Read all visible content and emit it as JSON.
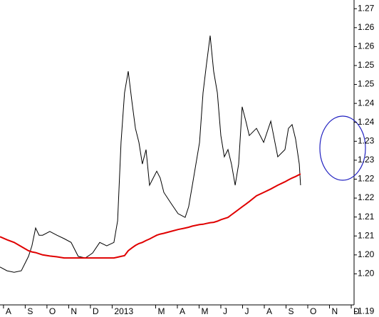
{
  "chart_data": {
    "type": "line",
    "x": [
      -0.16,
      0.16,
      0.49,
      0.82,
      1.15,
      1.31,
      1.48,
      1.64,
      1.8,
      2.13,
      2.46,
      2.79,
      3.11,
      3.44,
      3.77,
      4.1,
      4.43,
      4.75,
      5.08,
      5.25,
      5.41,
      5.57,
      5.74,
      5.9,
      6.07,
      6.23,
      6.39,
      6.56,
      6.72,
      6.89,
      7.05,
      7.21,
      7.38,
      7.7,
      8.03,
      8.36,
      8.52,
      8.69,
      9.02,
      9.18,
      9.34,
      9.51,
      9.67,
      9.84,
      10.0,
      10.16,
      10.33,
      10.49,
      10.66,
      10.82,
      10.98,
      11.15,
      11.31,
      11.64,
      11.97,
      12.3,
      12.62,
      12.95,
      13.11,
      13.28,
      13.44,
      13.61,
      13.67
    ],
    "series": [
      {
        "color": "#000000",
        "values": [
          1.2018,
          1.2008,
          1.2004,
          1.2008,
          1.2046,
          1.2074,
          1.2121,
          1.2102,
          1.2102,
          1.2112,
          1.2102,
          1.2093,
          1.2083,
          1.2046,
          1.2042,
          1.2055,
          1.2083,
          1.2074,
          1.2083,
          1.214,
          1.2347,
          1.2478,
          1.2535,
          1.2459,
          1.2384,
          1.2347,
          1.229,
          1.2328,
          1.2234,
          1.2253,
          1.2271,
          1.2253,
          1.2215,
          1.2187,
          1.2159,
          1.2149,
          1.2177,
          1.2234,
          1.2347,
          1.2478,
          1.2553,
          1.2629,
          1.2535,
          1.2478,
          1.2365,
          1.2309,
          1.2328,
          1.229,
          1.2234,
          1.229,
          1.2441,
          1.2403,
          1.2365,
          1.2384,
          1.2347,
          1.2403,
          1.2309,
          1.2328,
          1.2384,
          1.2394,
          1.2356,
          1.229,
          1.2234
        ]
      },
      {
        "color": "#e00000",
        "values": [
          1.2098,
          1.209,
          1.2083,
          1.2072,
          1.2061,
          1.2058,
          1.2056,
          1.2053,
          1.205,
          1.2047,
          1.2045,
          1.2042,
          1.2042,
          1.2042,
          1.2042,
          1.2042,
          1.2042,
          1.2042,
          1.2042,
          1.2044,
          1.2046,
          1.2048,
          1.2061,
          1.2068,
          1.2075,
          1.208,
          1.2083,
          1.2088,
          1.2092,
          1.2097,
          1.2102,
          1.2105,
          1.2107,
          1.2112,
          1.2117,
          1.2121,
          1.2123,
          1.2126,
          1.213,
          1.2131,
          1.2133,
          1.2135,
          1.2136,
          1.2139,
          1.2143,
          1.2146,
          1.2149,
          1.2156,
          1.2163,
          1.217,
          1.2177,
          1.2184,
          1.2191,
          1.2206,
          1.2215,
          1.2224,
          1.2234,
          1.2243,
          1.2248,
          1.2253,
          1.2257,
          1.2262,
          1.2264
        ]
      }
    ],
    "xlim": [
      -0.16,
      16.13
    ],
    "xticks": [
      {
        "value": 0,
        "label": "A"
      },
      {
        "value": 1,
        "label": "S"
      },
      {
        "value": 2,
        "label": "O"
      },
      {
        "value": 3,
        "label": "N"
      },
      {
        "value": 4,
        "label": "D"
      },
      {
        "value": 5,
        "label": "2013"
      },
      {
        "value": 7,
        "label": "M"
      },
      {
        "value": 8,
        "label": "A"
      },
      {
        "value": 9,
        "label": "M"
      },
      {
        "value": 10,
        "label": "J"
      },
      {
        "value": 11,
        "label": "J"
      },
      {
        "value": 12,
        "label": "A"
      },
      {
        "value": 13,
        "label": "S"
      },
      {
        "value": 14,
        "label": "O"
      },
      {
        "value": 15,
        "label": "N"
      },
      {
        "value": 16,
        "label": "D"
      }
    ],
    "ylim": [
      1.1918,
      1.2723
    ],
    "yticks": [
      1.27,
      {
        "value": 1.265,
        "label": "1.26"
      },
      1.26,
      {
        "value": 1.255,
        "label": "1.25"
      },
      1.25,
      {
        "value": 1.245,
        "label": "1.24"
      },
      1.24,
      {
        "value": 1.235,
        "label": "1.23"
      },
      1.23,
      {
        "value": 1.225,
        "label": "1.22"
      },
      1.22,
      {
        "value": 1.215,
        "label": "1.21"
      },
      1.21,
      {
        "value": 1.205,
        "label": "1.20"
      },
      {
        "value": 1.2,
        "label": "1.20"
      },
      1.19
    ]
  }
}
